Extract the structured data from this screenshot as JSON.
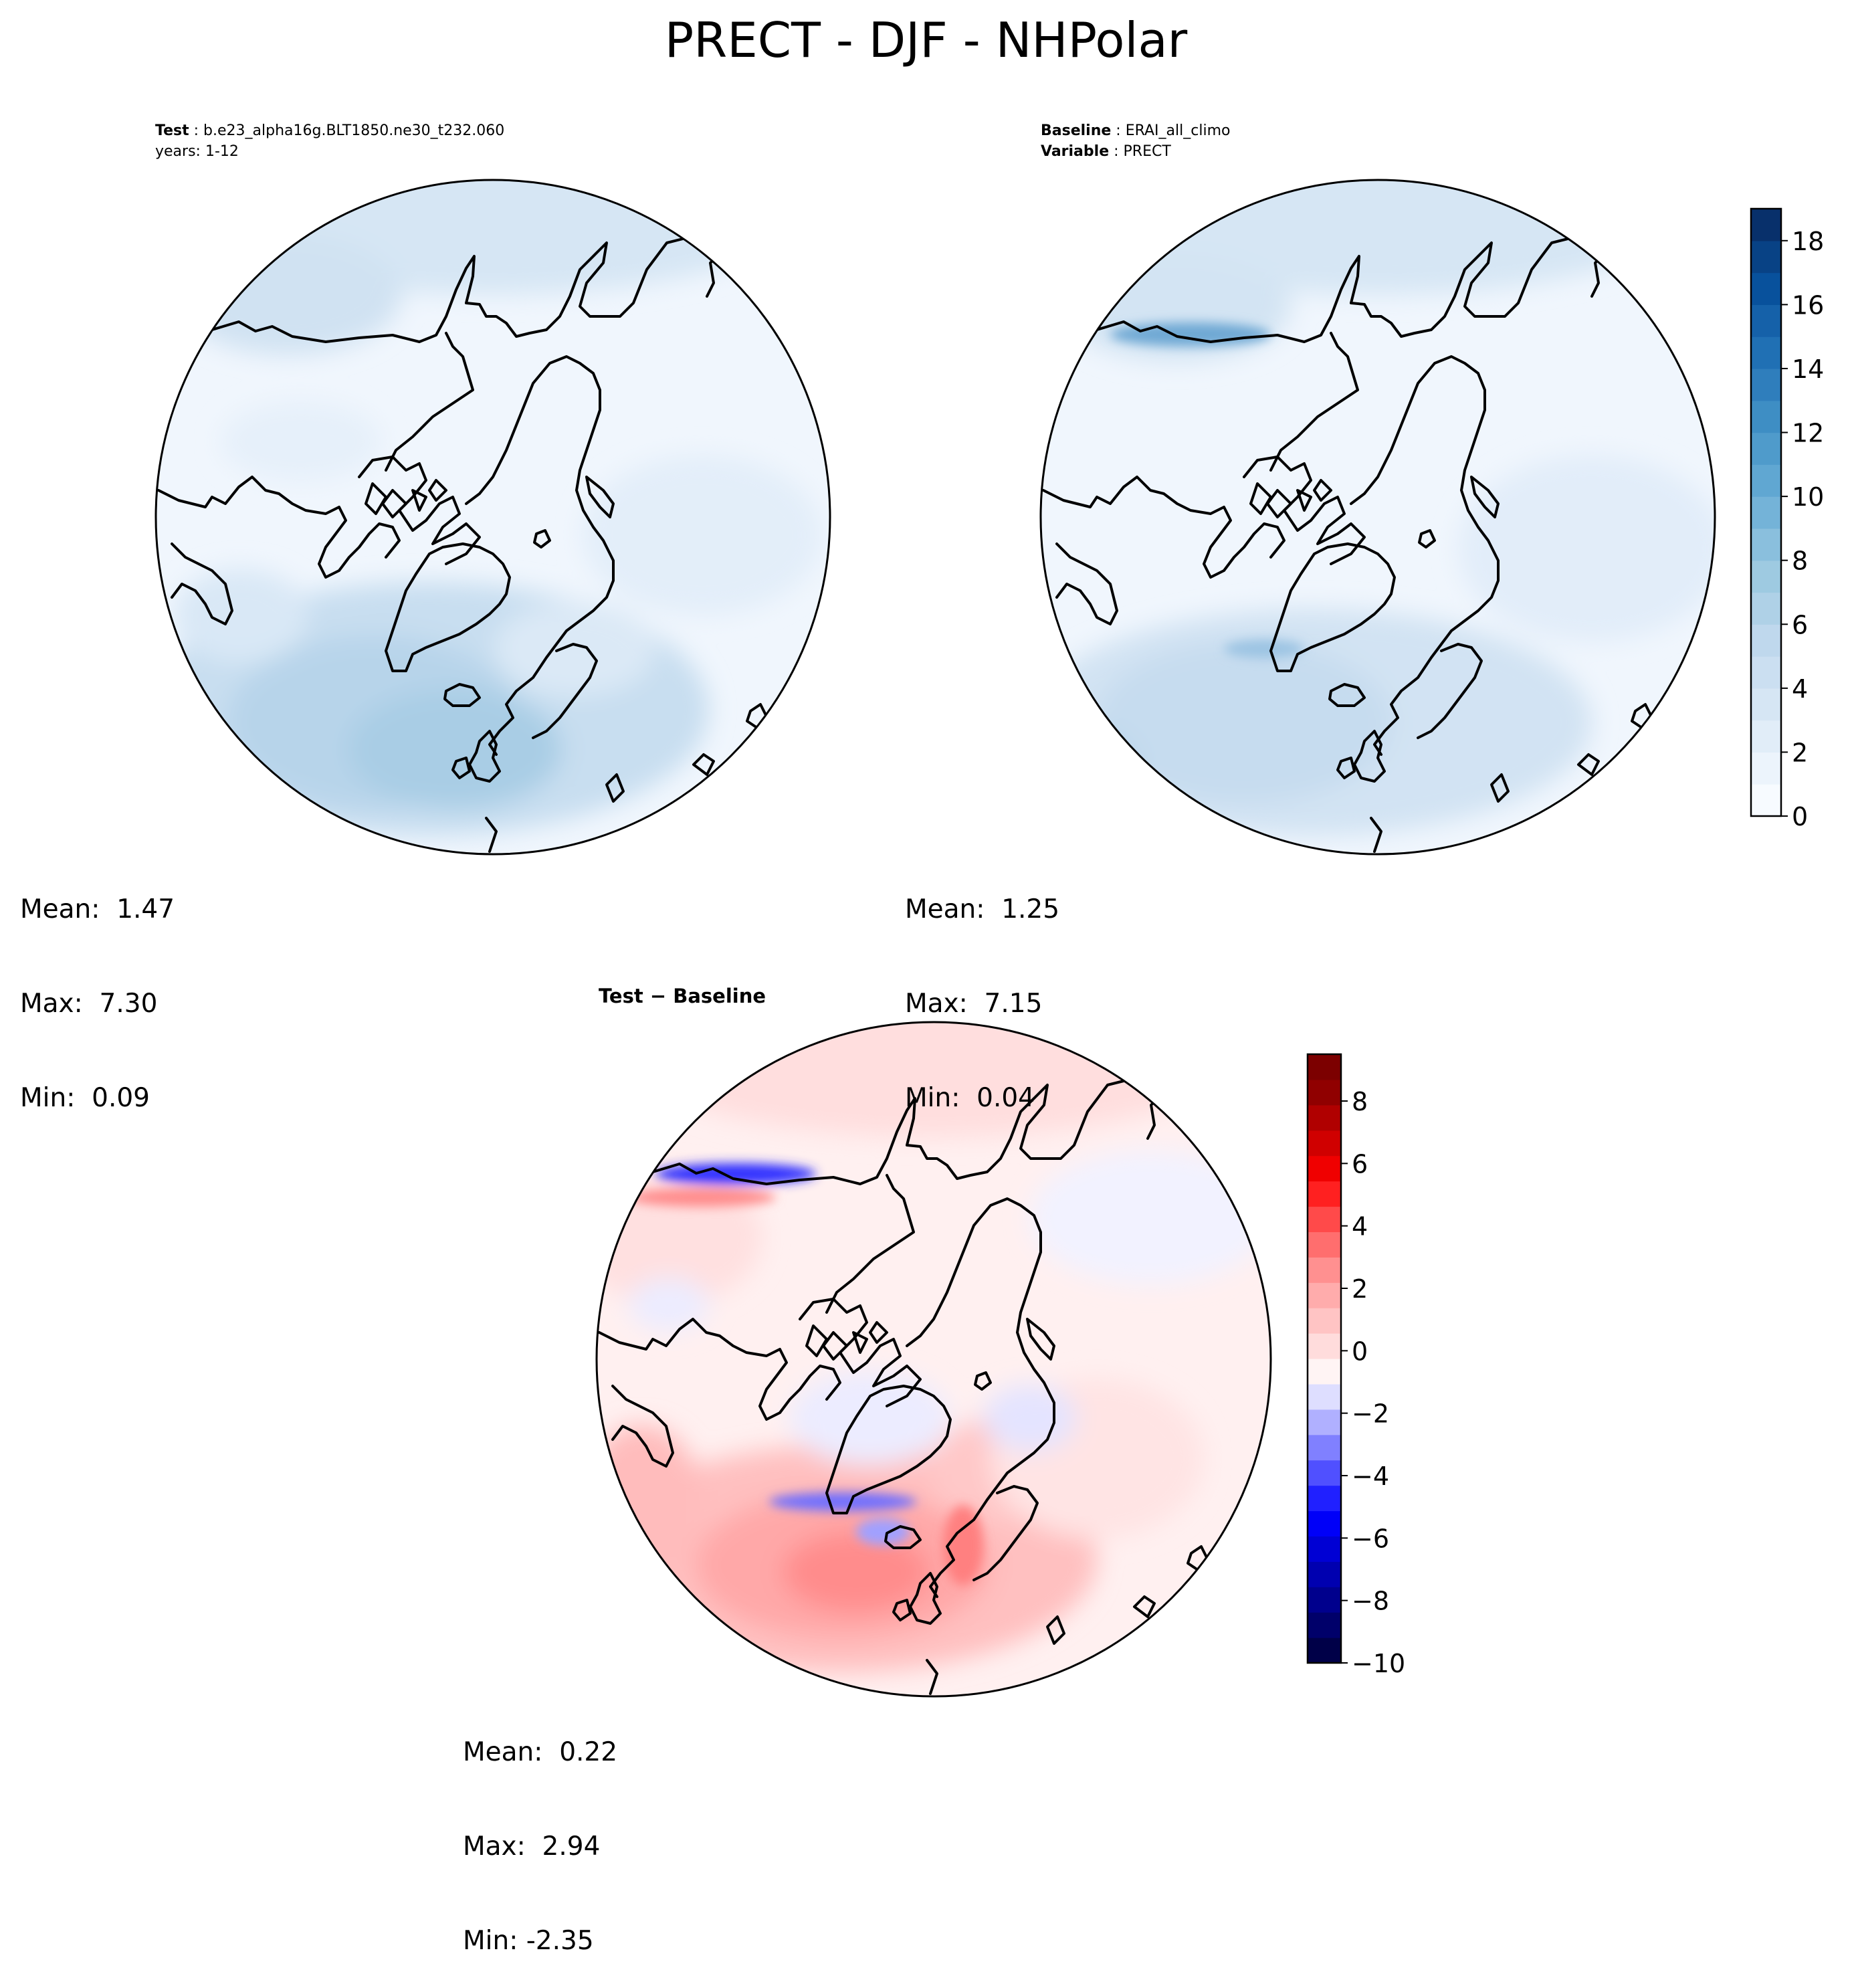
{
  "title": "PRECT - DJF - NHPolar",
  "panels": {
    "test": {
      "label_key": "Test",
      "label_value": "b.e23_alpha16g.BLT1850.ne30_t232.060",
      "line2": "years: 1-12",
      "stats": {
        "mean": "Mean:  1.47",
        "max": "Max:  7.30",
        "min": "Min:  0.09"
      }
    },
    "baseline": {
      "label_key": "Baseline",
      "label_value": "ERAI_all_climo",
      "line2_key": "Variable",
      "line2_value": "PRECT",
      "stats": {
        "mean": "Mean:  1.25",
        "max": "Max:  7.15",
        "min": "Min:  0.04"
      }
    },
    "diff": {
      "label": "Test − Baseline",
      "stats": {
        "mean": "Mean:  0.22",
        "max": "Max:  2.94",
        "min": "Min: -2.35"
      }
    }
  },
  "chart_data": [
    {
      "type": "heatmap",
      "title": "Test",
      "projection": "North Polar Stereographic",
      "field": "PRECT",
      "season": "DJF",
      "mean": 1.47,
      "max": 7.3,
      "min": 0.09,
      "colormap": "Blues",
      "vlim": [
        0,
        19
      ]
    },
    {
      "type": "heatmap",
      "title": "Baseline",
      "projection": "North Polar Stereographic",
      "field": "PRECT",
      "season": "DJF",
      "mean": 1.25,
      "max": 7.15,
      "min": 0.04,
      "colormap": "Blues",
      "vlim": [
        0,
        19
      ],
      "colorbar_ticks": [
        "0",
        "2",
        "4",
        "6",
        "8",
        "10",
        "12",
        "14",
        "16",
        "18"
      ]
    },
    {
      "type": "heatmap",
      "title": "Test − Baseline",
      "projection": "North Polar Stereographic",
      "field": "PRECT difference",
      "season": "DJF",
      "mean": 0.22,
      "max": 2.94,
      "min": -2.35,
      "colormap": "seismic",
      "vlim": [
        -10,
        9.5
      ],
      "colorbar_ticks": [
        "−10",
        "−8",
        "−6",
        "−4",
        "−2",
        "0",
        "2",
        "4",
        "6",
        "8"
      ]
    }
  ],
  "colors": {
    "blues": [
      "#f7fbff",
      "#ecf4fc",
      "#e1edf8",
      "#d6e6f4",
      "#cbdff1",
      "#bfd8ed",
      "#afd1e7",
      "#9ecae1",
      "#8abfdd",
      "#74b3d8",
      "#60a7d2",
      "#4f9bcb",
      "#3e8ec4",
      "#2f7ebc",
      "#2070b4",
      "#1561a9",
      "#08519c",
      "#084285",
      "#08306b"
    ],
    "seismic_neg": [
      "#000048",
      "#00006a",
      "#00008d",
      "#0000b0",
      "#0000d4",
      "#0000f8",
      "#2020ff",
      "#5050ff",
      "#8080ff",
      "#b0b0ff",
      "#dedeff"
    ],
    "seismic_pos": [
      "#fff4f4",
      "#ffdcdc",
      "#ffc4c4",
      "#ffacac",
      "#ff9090",
      "#ff6e6e",
      "#ff4a4a",
      "#ff2020",
      "#f00000",
      "#d00000",
      "#b00000",
      "#900000",
      "#7c0000"
    ]
  }
}
